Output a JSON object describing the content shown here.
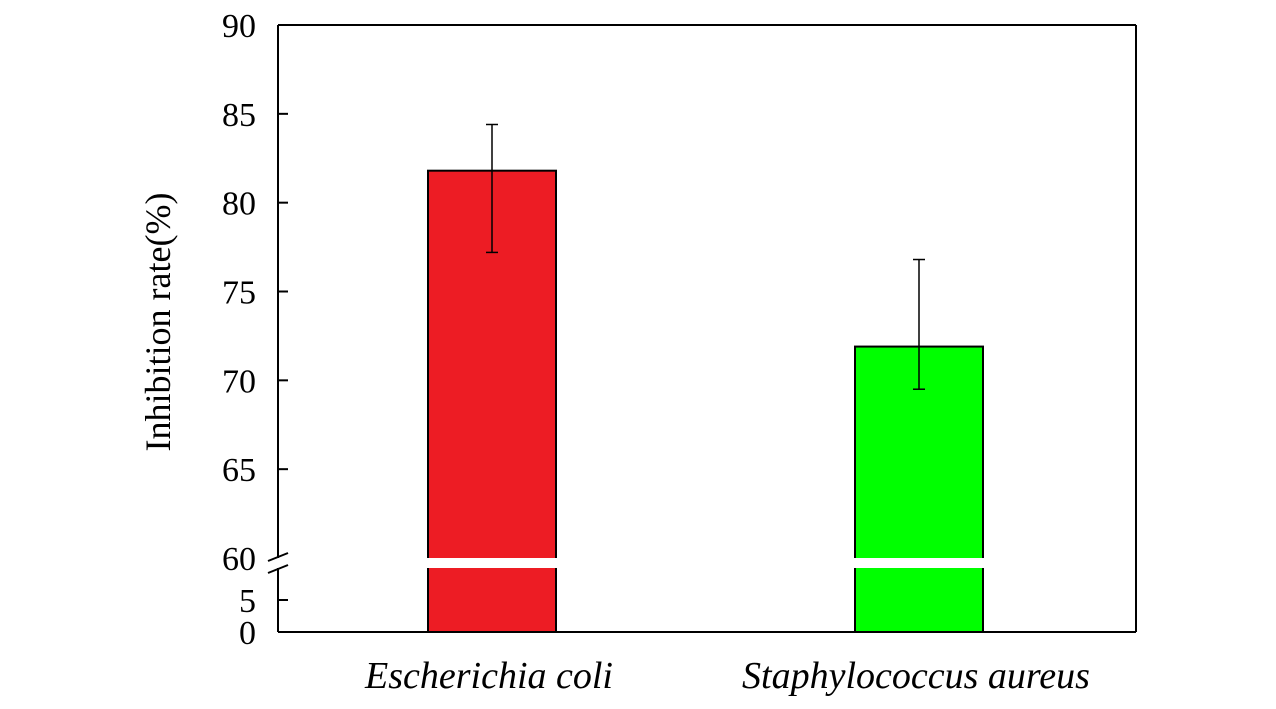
{
  "chart_data": {
    "type": "bar",
    "title": "",
    "xlabel": "",
    "ylabel": "Inhibition rate(%)",
    "ylim": [
      0,
      90
    ],
    "axis_break": [
      10,
      60
    ],
    "categories": [
      "Escherichia coli",
      "Staphylococcus aureus"
    ],
    "values": [
      81.8,
      71.9
    ],
    "errors": [
      {
        "low": 77.2,
        "high": 84.4
      },
      {
        "low": 69.5,
        "high": 76.8
      }
    ],
    "colors": [
      "#ed1c24",
      "#00ff00"
    ],
    "lower_ticks": [
      {
        "value": 0,
        "label": "0"
      },
      {
        "value": 5,
        "label": "5"
      }
    ],
    "upper_ticks": [
      {
        "value": 60,
        "label": "60"
      },
      {
        "value": 65,
        "label": "65"
      },
      {
        "value": 70,
        "label": "70"
      },
      {
        "value": 75,
        "label": "75"
      },
      {
        "value": 80,
        "label": "80"
      },
      {
        "value": 85,
        "label": "85"
      },
      {
        "value": 90,
        "label": "90"
      }
    ],
    "grid": false,
    "legend": "none"
  }
}
